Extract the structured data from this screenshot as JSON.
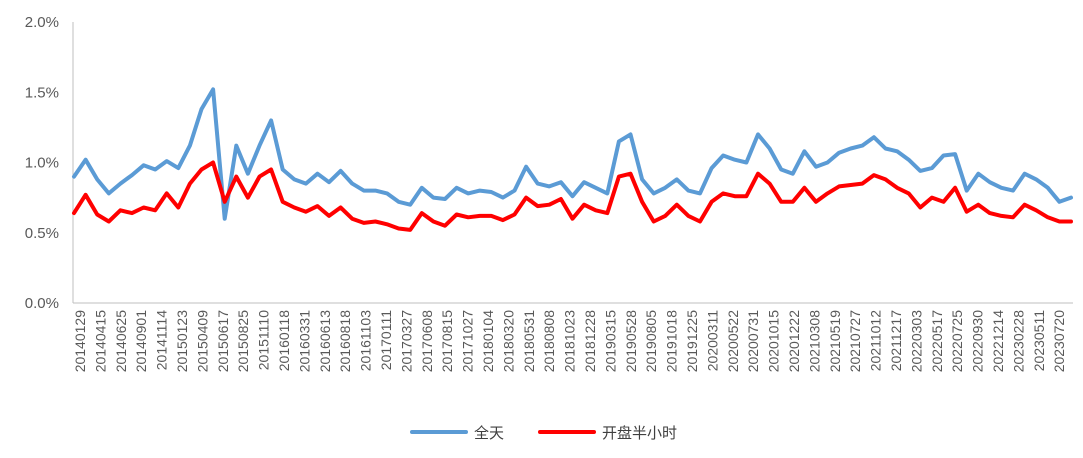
{
  "chart_data": {
    "type": "line",
    "title": "",
    "xlabel": "",
    "ylabel": "",
    "ylim": [
      0,
      0.02
    ],
    "y_ticks": [
      {
        "value": 0.0,
        "label": "0.0%"
      },
      {
        "value": 0.005,
        "label": "0.5%"
      },
      {
        "value": 0.01,
        "label": "1.0%"
      },
      {
        "value": 0.015,
        "label": "1.5%"
      },
      {
        "value": 0.02,
        "label": "2.0%"
      }
    ],
    "x_tick_labels": [
      "20140129",
      "20140415",
      "20140625",
      "20140901",
      "20141114",
      "20150123",
      "20150409",
      "20150617",
      "20150825",
      "20151110",
      "20160118",
      "20160331",
      "20160613",
      "20160818",
      "20161103",
      "20170111",
      "20170327",
      "20170608",
      "20170815",
      "20171027",
      "20180104",
      "20180320",
      "20180531",
      "20180808",
      "20181023",
      "20181228",
      "20190315",
      "20190528",
      "20190805",
      "20191018",
      "20191225",
      "20200311",
      "20200522",
      "20200731",
      "20201015",
      "20201222",
      "20210308",
      "20210519",
      "20210727",
      "20211012",
      "20211217",
      "20220303",
      "20220517",
      "20220725",
      "20220930",
      "20221214",
      "20230228",
      "20230511",
      "20230720"
    ],
    "grid": false,
    "legend_position": "bottom",
    "series": [
      {
        "name": "全天",
        "color": "#5b9bd5",
        "values": [
          0.009,
          0.0102,
          0.0088,
          0.0078,
          0.0085,
          0.0091,
          0.0098,
          0.0095,
          0.0101,
          0.0096,
          0.0112,
          0.0138,
          0.0152,
          0.006,
          0.0112,
          0.0092,
          0.0112,
          0.013,
          0.0095,
          0.0088,
          0.0085,
          0.0092,
          0.0086,
          0.0094,
          0.0085,
          0.008,
          0.008,
          0.0078,
          0.0072,
          0.007,
          0.0082,
          0.0075,
          0.0074,
          0.0082,
          0.0078,
          0.008,
          0.0079,
          0.0075,
          0.008,
          0.0097,
          0.0085,
          0.0083,
          0.0086,
          0.0076,
          0.0086,
          0.0082,
          0.0078,
          0.0115,
          0.012,
          0.0088,
          0.0078,
          0.0082,
          0.0088,
          0.008,
          0.0078,
          0.0096,
          0.0105,
          0.0102,
          0.01,
          0.012,
          0.011,
          0.0095,
          0.0092,
          0.0108,
          0.0097,
          0.01,
          0.0107,
          0.011,
          0.0112,
          0.0118,
          0.011,
          0.0108,
          0.0102,
          0.0094,
          0.0096,
          0.0105,
          0.0106,
          0.008,
          0.0092,
          0.0086,
          0.0082,
          0.008,
          0.0092,
          0.0088,
          0.0082,
          0.0072,
          0.0075
        ]
      },
      {
        "name": "开盘半小时",
        "color": "#ff0000",
        "values": [
          0.0064,
          0.0077,
          0.0063,
          0.0058,
          0.0066,
          0.0064,
          0.0068,
          0.0066,
          0.0078,
          0.0068,
          0.0085,
          0.0095,
          0.01,
          0.0072,
          0.009,
          0.0075,
          0.009,
          0.0095,
          0.0072,
          0.0068,
          0.0065,
          0.0069,
          0.0062,
          0.0068,
          0.006,
          0.0057,
          0.0058,
          0.0056,
          0.0053,
          0.0052,
          0.0064,
          0.0058,
          0.0055,
          0.0063,
          0.0061,
          0.0062,
          0.0062,
          0.0059,
          0.0063,
          0.0075,
          0.0069,
          0.007,
          0.0074,
          0.006,
          0.007,
          0.0066,
          0.0064,
          0.009,
          0.0092,
          0.0072,
          0.0058,
          0.0062,
          0.007,
          0.0062,
          0.0058,
          0.0072,
          0.0078,
          0.0076,
          0.0076,
          0.0092,
          0.0085,
          0.0072,
          0.0072,
          0.0082,
          0.0072,
          0.0078,
          0.0083,
          0.0084,
          0.0085,
          0.0091,
          0.0088,
          0.0082,
          0.0078,
          0.0068,
          0.0075,
          0.0072,
          0.0082,
          0.0065,
          0.007,
          0.0064,
          0.0062,
          0.0061,
          0.007,
          0.0066,
          0.0061,
          0.0058,
          0.0058
        ]
      }
    ]
  }
}
